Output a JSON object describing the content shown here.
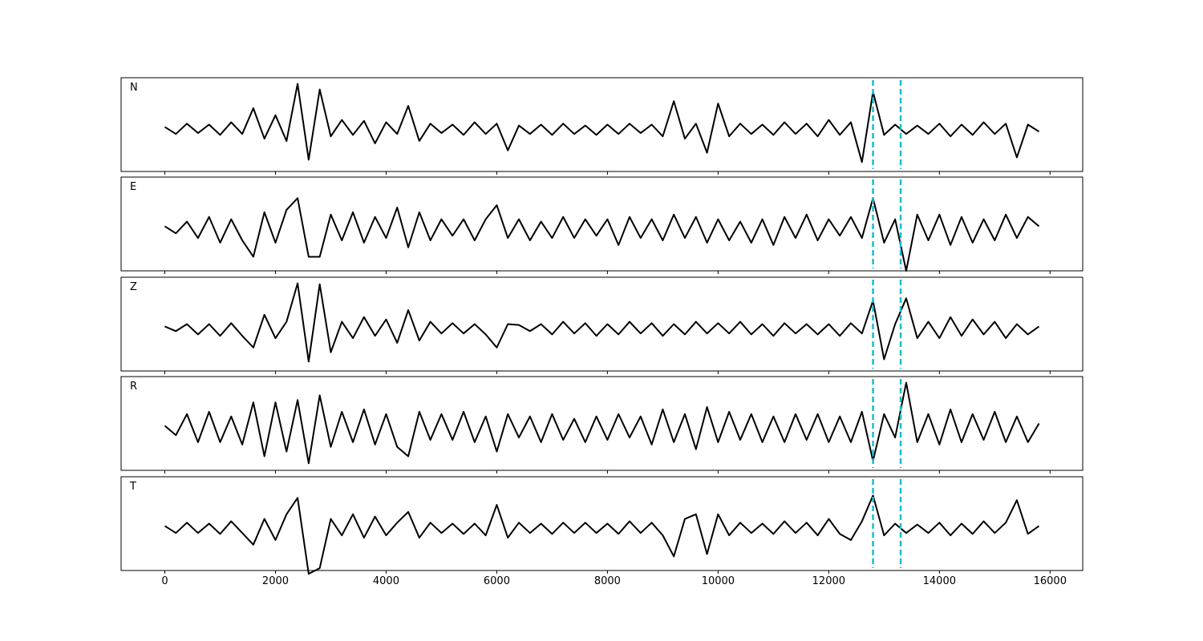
{
  "chart_data": {
    "type": "line",
    "x": [
      0,
      200,
      400,
      600,
      800,
      1000,
      1200,
      1400,
      1600,
      1800,
      2000,
      2200,
      2400,
      2600,
      2800,
      3000,
      3200,
      3400,
      3600,
      3800,
      4000,
      4200,
      4400,
      4600,
      4800,
      5000,
      5200,
      5400,
      5600,
      5800,
      6000,
      6200,
      6400,
      6600,
      6800,
      7000,
      7200,
      7400,
      7600,
      7800,
      8000,
      8200,
      8400,
      8600,
      8800,
      9000,
      9200,
      9400,
      9600,
      9800,
      10000,
      10200,
      10400,
      10600,
      10800,
      11000,
      11200,
      11400,
      11600,
      11800,
      12000,
      12200,
      12400,
      12600,
      12800,
      13000,
      13200,
      13400,
      13600,
      13800,
      14000,
      14200,
      14400,
      14600,
      14800,
      15000,
      15200,
      15400,
      15600,
      15800
    ],
    "series": [
      {
        "name": "N",
        "color": "#000000",
        "values": [
          0.05,
          -0.1,
          0.12,
          -0.08,
          0.1,
          -0.12,
          0.15,
          -0.1,
          0.45,
          -0.2,
          0.3,
          -0.25,
          0.97,
          -0.65,
          0.85,
          -0.15,
          0.2,
          -0.12,
          0.18,
          -0.3,
          0.15,
          -0.1,
          0.5,
          -0.25,
          0.12,
          -0.08,
          0.1,
          -0.12,
          0.15,
          -0.1,
          0.12,
          -0.45,
          0.08,
          -0.1,
          0.1,
          -0.12,
          0.12,
          -0.1,
          0.08,
          -0.12,
          0.1,
          -0.1,
          0.12,
          -0.08,
          0.1,
          -0.15,
          0.6,
          -0.2,
          0.12,
          -0.5,
          0.55,
          -0.15,
          0.12,
          -0.1,
          0.1,
          -0.12,
          0.15,
          -0.1,
          0.12,
          -0.15,
          0.2,
          -0.12,
          0.15,
          -0.7,
          0.8,
          -0.12,
          0.1,
          -0.1,
          0.08,
          -0.1,
          0.12,
          -0.15,
          0.1,
          -0.12,
          0.15,
          -0.1,
          0.12,
          -0.6,
          0.1,
          -0.05
        ]
      },
      {
        "name": "E",
        "color": "#000000",
        "values": [
          0.05,
          -0.1,
          0.15,
          -0.2,
          0.25,
          -0.3,
          0.2,
          -0.25,
          -0.6,
          0.35,
          -0.3,
          0.4,
          0.65,
          -0.6,
          -0.6,
          0.3,
          -0.25,
          0.35,
          -0.3,
          0.25,
          -0.2,
          0.45,
          -0.4,
          0.35,
          -0.25,
          0.2,
          -0.15,
          0.2,
          -0.25,
          0.2,
          0.5,
          -0.2,
          0.2,
          -0.25,
          0.15,
          -0.2,
          0.25,
          -0.2,
          0.2,
          -0.15,
          0.2,
          -0.35,
          0.25,
          -0.2,
          0.2,
          -0.25,
          0.3,
          -0.2,
          0.25,
          -0.3,
          0.2,
          -0.25,
          0.15,
          -0.3,
          0.2,
          -0.35,
          0.25,
          -0.2,
          0.3,
          -0.25,
          0.2,
          -0.15,
          0.25,
          -0.2,
          0.65,
          -0.3,
          0.2,
          -0.9,
          0.3,
          -0.25,
          0.3,
          -0.35,
          0.25,
          -0.3,
          0.2,
          -0.25,
          0.3,
          -0.2,
          0.25,
          0.05
        ]
      },
      {
        "name": "Z",
        "color": "#000000",
        "values": [
          0.05,
          -0.05,
          0.1,
          -0.12,
          0.1,
          -0.15,
          0.12,
          -0.15,
          -0.4,
          0.3,
          -0.2,
          0.15,
          0.97,
          -0.7,
          0.95,
          -0.5,
          0.15,
          -0.2,
          0.25,
          -0.15,
          0.2,
          -0.3,
          0.4,
          -0.25,
          0.15,
          -0.1,
          0.12,
          -0.1,
          0.1,
          -0.12,
          -0.4,
          0.1,
          0.08,
          -0.05,
          0.1,
          -0.12,
          0.15,
          -0.1,
          0.12,
          -0.15,
          0.1,
          -0.12,
          0.15,
          -0.1,
          0.12,
          -0.15,
          0.1,
          -0.12,
          0.15,
          -0.1,
          0.12,
          -0.1,
          0.15,
          -0.12,
          0.1,
          -0.15,
          0.12,
          -0.1,
          0.1,
          -0.12,
          0.1,
          -0.15,
          0.12,
          -0.1,
          0.6,
          -0.65,
          0.1,
          0.65,
          -0.2,
          0.15,
          -0.2,
          0.25,
          -0.15,
          0.2,
          -0.12,
          0.15,
          -0.2,
          0.1,
          -0.12,
          0.05
        ]
      },
      {
        "name": "R",
        "color": "#000000",
        "values": [
          0.05,
          -0.15,
          0.3,
          -0.3,
          0.35,
          -0.3,
          0.25,
          -0.35,
          0.55,
          -0.6,
          0.55,
          -0.5,
          0.6,
          -0.75,
          0.7,
          -0.4,
          0.35,
          -0.3,
          0.4,
          -0.35,
          0.3,
          -0.4,
          -0.6,
          0.35,
          -0.25,
          0.3,
          -0.25,
          0.35,
          -0.3,
          0.25,
          -0.5,
          0.3,
          -0.2,
          0.25,
          -0.3,
          0.3,
          -0.25,
          0.2,
          -0.3,
          0.25,
          -0.25,
          0.3,
          -0.2,
          0.25,
          -0.35,
          0.4,
          -0.3,
          0.3,
          -0.45,
          0.45,
          -0.3,
          0.35,
          -0.25,
          0.3,
          -0.3,
          0.25,
          -0.3,
          0.3,
          -0.25,
          0.3,
          -0.3,
          0.25,
          -0.3,
          0.35,
          -0.7,
          0.3,
          -0.2,
          0.97,
          -0.3,
          0.3,
          -0.35,
          0.4,
          -0.3,
          0.3,
          -0.25,
          0.35,
          -0.3,
          0.25,
          -0.3,
          0.1
        ]
      },
      {
        "name": "T",
        "color": "#000000",
        "values": [
          0.05,
          -0.1,
          0.12,
          -0.1,
          0.1,
          -0.12,
          0.15,
          -0.1,
          -0.35,
          0.2,
          -0.25,
          0.3,
          0.65,
          -0.97,
          -0.85,
          0.2,
          -0.15,
          0.3,
          -0.2,
          0.25,
          -0.15,
          0.12,
          0.35,
          -0.2,
          0.12,
          -0.1,
          0.1,
          -0.12,
          0.1,
          -0.15,
          0.5,
          -0.2,
          0.12,
          -0.1,
          0.1,
          -0.12,
          0.12,
          -0.1,
          0.12,
          -0.1,
          0.1,
          -0.12,
          0.15,
          -0.1,
          0.12,
          -0.15,
          -0.6,
          0.2,
          0.3,
          -0.55,
          0.3,
          -0.15,
          0.12,
          -0.1,
          0.1,
          -0.12,
          0.15,
          -0.1,
          0.12,
          -0.15,
          0.2,
          -0.12,
          -0.25,
          0.15,
          0.7,
          -0.15,
          0.1,
          -0.1,
          0.08,
          -0.1,
          0.12,
          -0.15,
          0.1,
          -0.12,
          0.15,
          -0.1,
          0.12,
          0.6,
          -0.12,
          0.05
        ]
      }
    ],
    "xlim": [
      -790,
      16590
    ],
    "xticks": [
      0,
      2000,
      4000,
      6000,
      8000,
      10000,
      12000,
      14000,
      16000
    ],
    "ylim": [
      -0.9,
      1.1
    ],
    "vlines": [
      12800,
      13300
    ],
    "vline_color": "#17becf",
    "vline_style": "dashed"
  }
}
